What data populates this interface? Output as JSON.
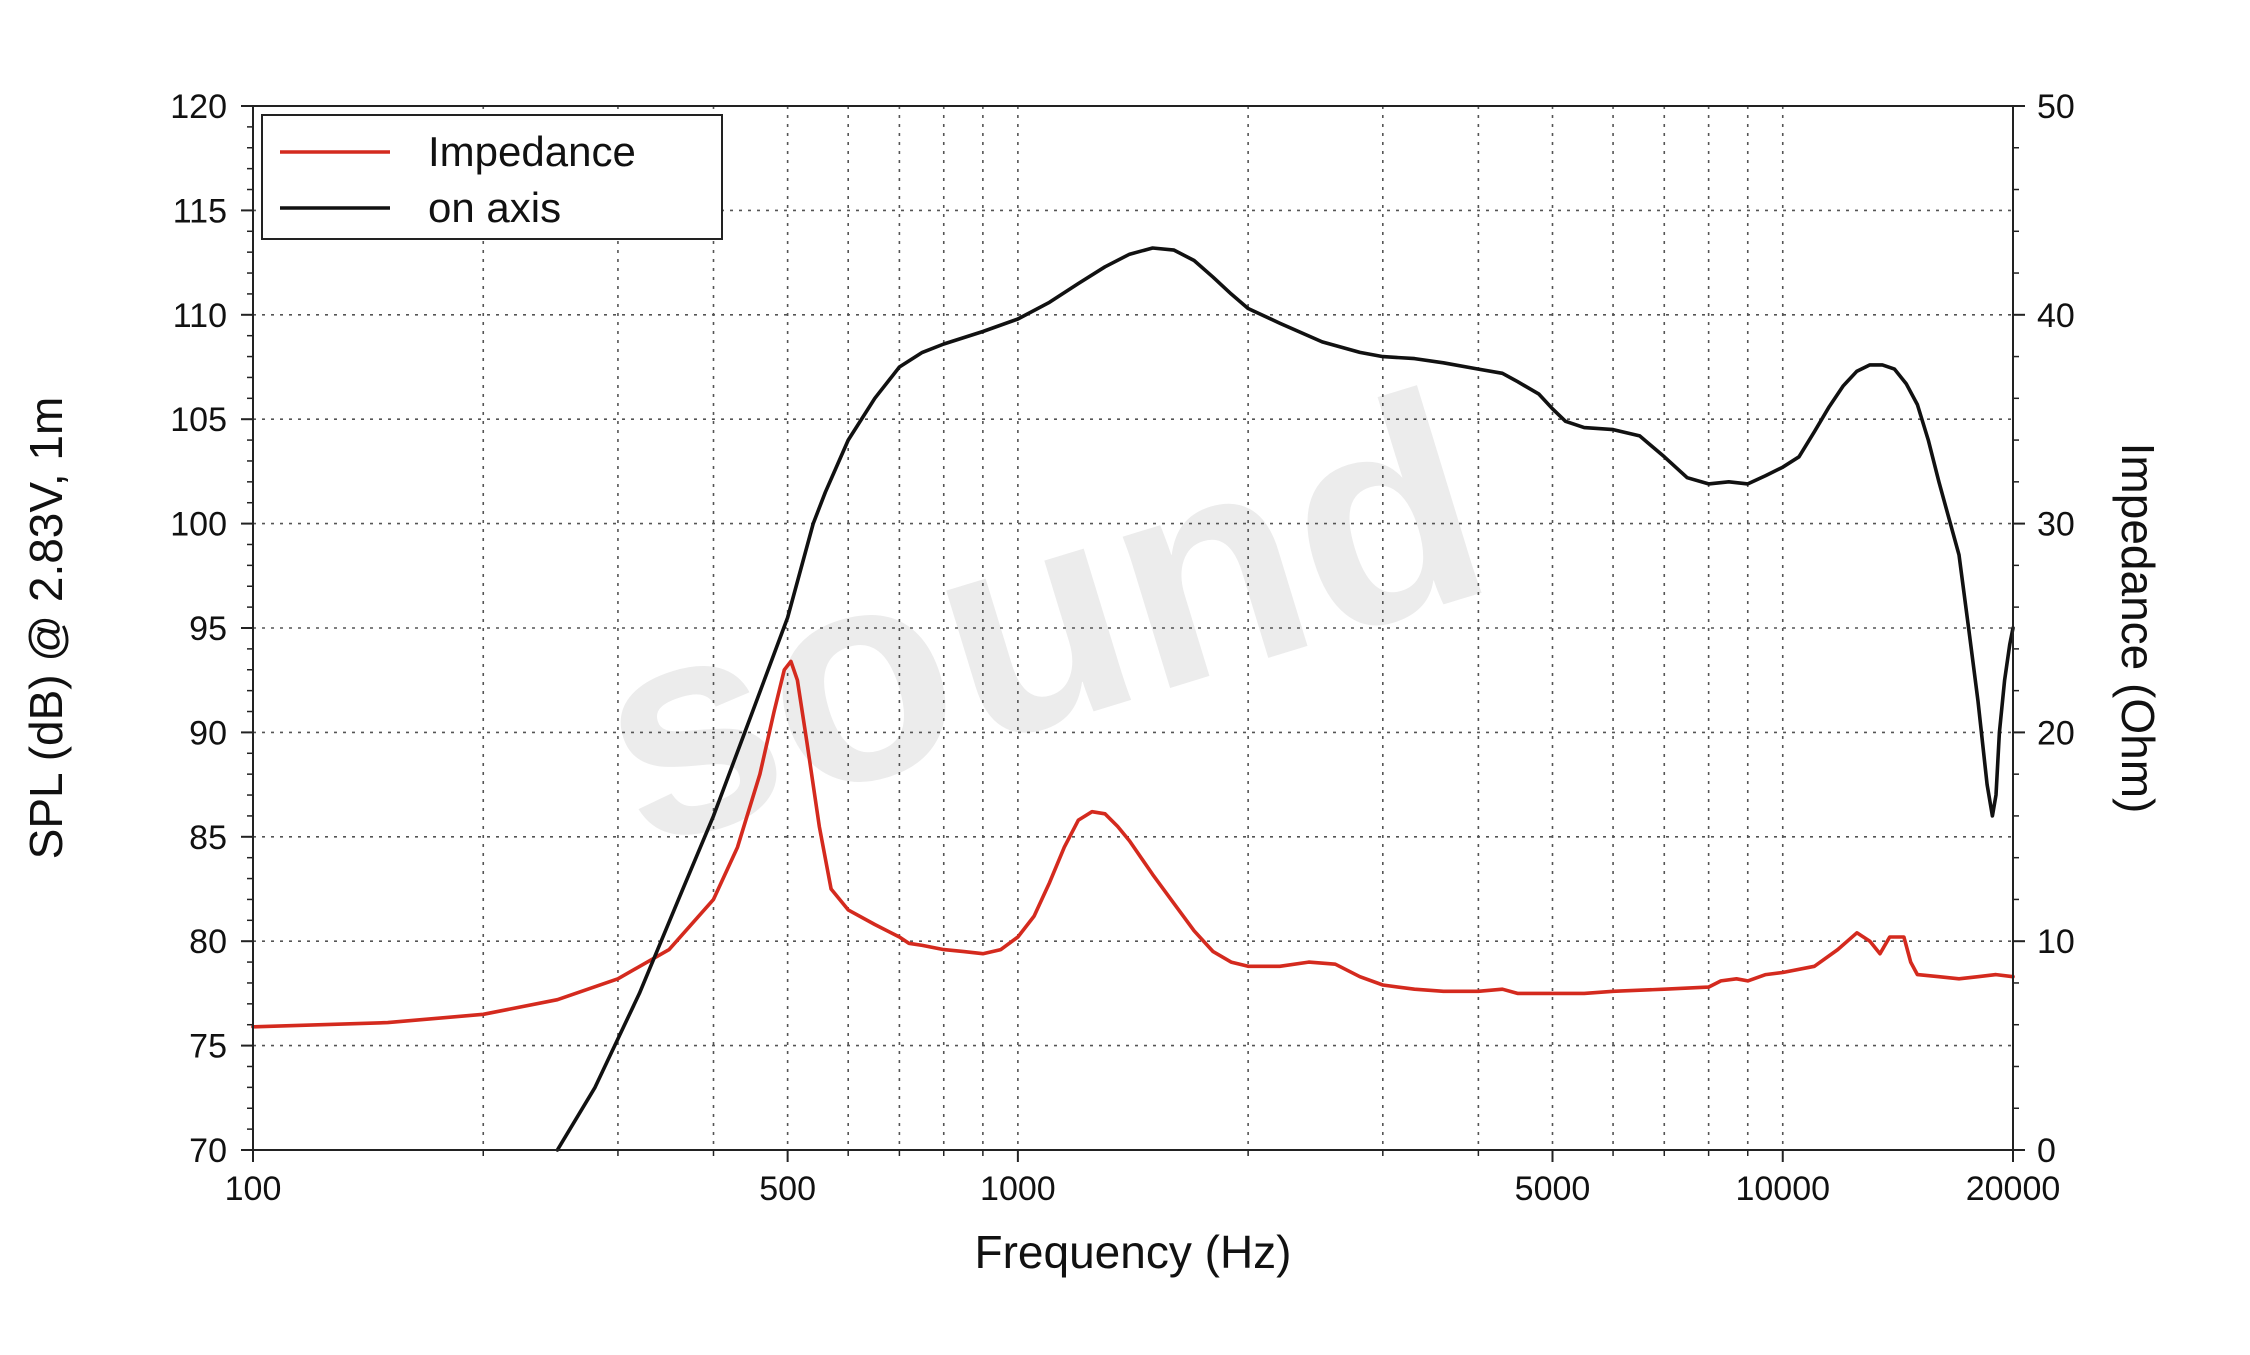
{
  "chart_data": {
    "type": "line",
    "xlabel": "Frequency (Hz)",
    "ylabel_left": "SPL (dB) @ 2.83V, 1m",
    "ylabel_right": "Impedance (Ohm)",
    "x_scale": "log",
    "xlim": [
      100,
      20000
    ],
    "ylim_left": [
      70,
      120
    ],
    "ylim_right": [
      0,
      50
    ],
    "x_ticks": [
      100,
      500,
      1000,
      5000,
      10000,
      20000
    ],
    "x_tick_labels": [
      "100",
      "500",
      "1000",
      "5000",
      "10000",
      "20000"
    ],
    "y_left_ticks": [
      70,
      75,
      80,
      85,
      90,
      95,
      100,
      105,
      110,
      115,
      120
    ],
    "y_left_tick_labels": [
      "70",
      "75",
      "80",
      "85",
      "90",
      "95",
      "100",
      "105",
      "110",
      "115",
      "120"
    ],
    "y_right_ticks": [
      0,
      10,
      20,
      30,
      40,
      50
    ],
    "y_right_tick_labels": [
      "0",
      "10",
      "20",
      "30",
      "40",
      "50"
    ],
    "grid": true,
    "legend_position": "top-left",
    "watermark": "sound",
    "series": [
      {
        "name": "Impedance",
        "axis": "right",
        "color": "#d42a1e",
        "points": [
          [
            100,
            5.9
          ],
          [
            150,
            6.1
          ],
          [
            200,
            6.5
          ],
          [
            250,
            7.2
          ],
          [
            300,
            8.2
          ],
          [
            350,
            9.6
          ],
          [
            400,
            12
          ],
          [
            430,
            14.5
          ],
          [
            460,
            18
          ],
          [
            480,
            21
          ],
          [
            495,
            23
          ],
          [
            505,
            23.4
          ],
          [
            515,
            22.5
          ],
          [
            530,
            19.5
          ],
          [
            550,
            15.5
          ],
          [
            570,
            12.5
          ],
          [
            600,
            11.5
          ],
          [
            650,
            10.8
          ],
          [
            700,
            10.2
          ],
          [
            720,
            9.9
          ],
          [
            750,
            9.8
          ],
          [
            800,
            9.6
          ],
          [
            850,
            9.5
          ],
          [
            900,
            9.4
          ],
          [
            950,
            9.6
          ],
          [
            1000,
            10.2
          ],
          [
            1050,
            11.2
          ],
          [
            1100,
            12.8
          ],
          [
            1150,
            14.5
          ],
          [
            1200,
            15.8
          ],
          [
            1250,
            16.2
          ],
          [
            1300,
            16.1
          ],
          [
            1350,
            15.5
          ],
          [
            1400,
            14.8
          ],
          [
            1500,
            13.2
          ],
          [
            1600,
            11.8
          ],
          [
            1700,
            10.5
          ],
          [
            1800,
            9.5
          ],
          [
            1900,
            9.0
          ],
          [
            2000,
            8.8
          ],
          [
            2200,
            8.8
          ],
          [
            2400,
            9.0
          ],
          [
            2600,
            8.9
          ],
          [
            2800,
            8.3
          ],
          [
            3000,
            7.9
          ],
          [
            3300,
            7.7
          ],
          [
            3600,
            7.6
          ],
          [
            4000,
            7.6
          ],
          [
            4300,
            7.7
          ],
          [
            4500,
            7.5
          ],
          [
            5000,
            7.5
          ],
          [
            5500,
            7.5
          ],
          [
            6000,
            7.6
          ],
          [
            7000,
            7.7
          ],
          [
            8000,
            7.8
          ],
          [
            8300,
            8.1
          ],
          [
            8700,
            8.2
          ],
          [
            9000,
            8.1
          ],
          [
            9500,
            8.4
          ],
          [
            10000,
            8.5
          ],
          [
            11000,
            8.8
          ],
          [
            11800,
            9.6
          ],
          [
            12500,
            10.4
          ],
          [
            13000,
            10.0
          ],
          [
            13400,
            9.4
          ],
          [
            13800,
            10.2
          ],
          [
            14400,
            10.2
          ],
          [
            14700,
            9.0
          ],
          [
            15000,
            8.4
          ],
          [
            16000,
            8.3
          ],
          [
            17000,
            8.2
          ],
          [
            18000,
            8.3
          ],
          [
            19000,
            8.4
          ],
          [
            20000,
            8.3
          ]
        ]
      },
      {
        "name": "on axis",
        "axis": "left",
        "color": "#111111",
        "points": [
          [
            250,
            70
          ],
          [
            280,
            73
          ],
          [
            320,
            77.5
          ],
          [
            360,
            82
          ],
          [
            400,
            86
          ],
          [
            450,
            91
          ],
          [
            500,
            95.5
          ],
          [
            540,
            100
          ],
          [
            560,
            101.5
          ],
          [
            600,
            104
          ],
          [
            650,
            106
          ],
          [
            700,
            107.5
          ],
          [
            750,
            108.2
          ],
          [
            800,
            108.6
          ],
          [
            900,
            109.2
          ],
          [
            1000,
            109.8
          ],
          [
            1100,
            110.6
          ],
          [
            1200,
            111.5
          ],
          [
            1300,
            112.3
          ],
          [
            1400,
            112.9
          ],
          [
            1500,
            113.2
          ],
          [
            1600,
            113.1
          ],
          [
            1700,
            112.6
          ],
          [
            1800,
            111.8
          ],
          [
            1900,
            111
          ],
          [
            2000,
            110.3
          ],
          [
            2200,
            109.6
          ],
          [
            2500,
            108.7
          ],
          [
            2800,
            108.2
          ],
          [
            3000,
            108
          ],
          [
            3300,
            107.9
          ],
          [
            3600,
            107.7
          ],
          [
            4000,
            107.4
          ],
          [
            4300,
            107.2
          ],
          [
            4500,
            106.8
          ],
          [
            4800,
            106.2
          ],
          [
            5000,
            105.5
          ],
          [
            5200,
            104.9
          ],
          [
            5500,
            104.6
          ],
          [
            6000,
            104.5
          ],
          [
            6500,
            104.2
          ],
          [
            7000,
            103.2
          ],
          [
            7500,
            102.2
          ],
          [
            8000,
            101.9
          ],
          [
            8500,
            102.0
          ],
          [
            9000,
            101.9
          ],
          [
            9500,
            102.3
          ],
          [
            10000,
            102.7
          ],
          [
            10500,
            103.2
          ],
          [
            11000,
            104.4
          ],
          [
            11500,
            105.6
          ],
          [
            12000,
            106.6
          ],
          [
            12500,
            107.3
          ],
          [
            13000,
            107.6
          ],
          [
            13500,
            107.6
          ],
          [
            14000,
            107.4
          ],
          [
            14500,
            106.7
          ],
          [
            15000,
            105.7
          ],
          [
            15500,
            104
          ],
          [
            16000,
            102
          ],
          [
            17000,
            98.5
          ],
          [
            17500,
            95
          ],
          [
            18000,
            91.5
          ],
          [
            18500,
            87.5
          ],
          [
            18800,
            86
          ],
          [
            19000,
            87
          ],
          [
            19200,
            90
          ],
          [
            19500,
            92.5
          ],
          [
            19800,
            94.2
          ],
          [
            20000,
            95
          ]
        ]
      }
    ]
  }
}
